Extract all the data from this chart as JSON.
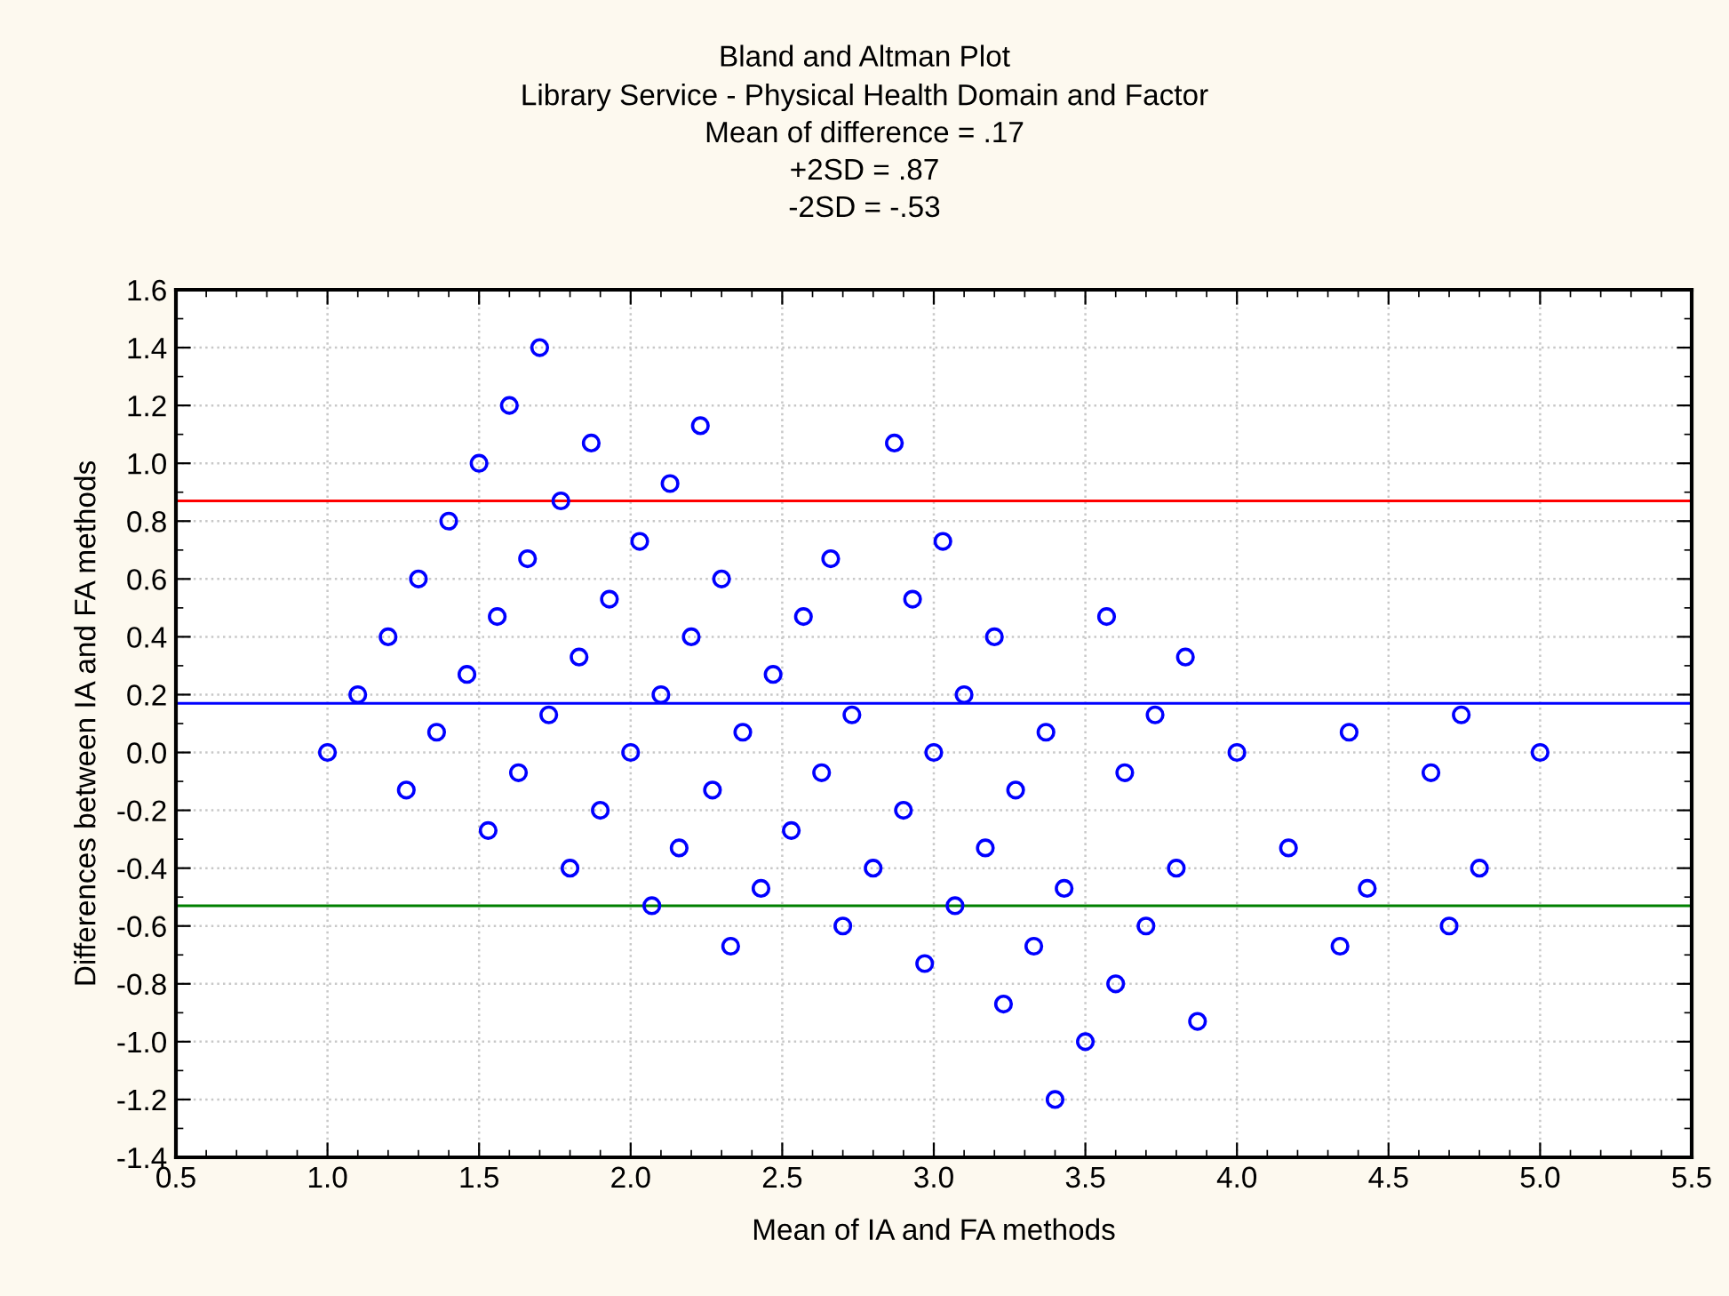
{
  "chart_data": {
    "type": "scatter",
    "title": "Bland and Altman Plot",
    "subtitle": "Library Service - Physical Health Domain and Factor\nMean of difference = .17\n+2SD = .87\n-2SD = -.53",
    "xlabel": "Mean of IA and FA methods",
    "ylabel": "Differences between IA and FA methods",
    "series": [
      {
        "color": "#0000ff",
        "x": [
          1.0,
          1.1,
          1.2,
          1.3,
          1.4,
          1.5,
          1.6,
          1.7,
          1.36,
          1.26,
          1.46,
          1.56,
          1.66,
          1.77,
          1.87,
          1.53,
          1.63,
          1.73,
          1.83,
          1.93,
          2.03,
          2.13,
          1.8,
          1.9,
          2.0,
          2.1,
          2.2,
          2.07,
          2.16,
          2.23,
          2.3,
          2.37,
          2.27,
          2.33,
          2.43,
          2.47,
          2.57,
          2.66,
          2.53,
          2.63,
          2.73,
          2.7,
          2.8,
          2.9,
          2.87,
          2.93,
          2.97,
          3.0,
          3.03,
          3.07,
          3.1,
          3.2,
          3.17,
          3.27,
          3.23,
          3.37,
          3.33,
          3.43,
          3.4,
          3.5,
          3.57,
          3.6,
          3.73,
          3.63,
          3.7,
          3.8,
          3.83,
          3.87,
          4.0,
          4.17,
          4.37,
          4.34,
          4.43,
          4.64,
          4.74,
          4.7,
          4.8,
          5.0
        ],
        "values": [
          0.0,
          0.2,
          0.4,
          0.6,
          0.8,
          1.0,
          1.2,
          1.4,
          0.07,
          -0.13,
          0.27,
          0.47,
          0.67,
          0.87,
          1.07,
          -0.27,
          -0.07,
          0.13,
          0.33,
          0.53,
          0.73,
          0.93,
          -0.4,
          -0.2,
          0.0,
          0.2,
          0.4,
          -0.53,
          -0.33,
          1.13,
          0.6,
          0.07,
          -0.13,
          -0.67,
          -0.47,
          0.27,
          0.47,
          0.67,
          -0.27,
          -0.07,
          0.13,
          -0.6,
          -0.4,
          -0.2,
          1.07,
          0.53,
          -0.73,
          0.0,
          0.73,
          -0.53,
          0.2,
          0.4,
          -0.33,
          -0.13,
          -0.87,
          0.07,
          -0.67,
          -0.47,
          -1.2,
          -1.0,
          0.47,
          -0.8,
          0.13,
          -0.07,
          -0.6,
          -0.4,
          0.33,
          -0.93,
          0.0,
          -0.33,
          0.07,
          -0.67,
          -0.47,
          -0.07,
          0.13,
          -0.6,
          -0.4,
          0.0
        ]
      }
    ],
    "marker": "circle",
    "grid": true,
    "legend": false,
    "ref_lines": [
      {
        "axis": "y",
        "value": 0.87,
        "color": "#ff0000"
      },
      {
        "axis": "y",
        "value": 0.17,
        "color": "#0000ff"
      },
      {
        "axis": "y",
        "value": -0.53,
        "color": "#008000"
      }
    ],
    "xlim": [
      0.5,
      5.5
    ],
    "xticks": [
      0.5,
      {
        "value": 1,
        "label": "1.0"
      },
      1.5,
      {
        "value": 2,
        "label": "2.0"
      },
      2.5,
      {
        "value": 3,
        "label": "3.0"
      },
      3.5,
      {
        "value": 4,
        "label": "4.0"
      },
      4.5,
      {
        "value": 5,
        "label": "5.0"
      },
      5.5
    ],
    "ylim": [
      -1.4,
      1.6
    ],
    "yticks": [
      -1.4,
      -1.2,
      {
        "value": -1,
        "label": "-1.0"
      },
      -0.8,
      -0.6,
      -0.4,
      -0.2,
      {
        "value": 0,
        "label": "0.0"
      },
      0.2,
      0.4,
      0.6,
      0.8,
      {
        "value": 1,
        "label": "1.0"
      },
      1.2,
      1.4,
      1.6
    ]
  }
}
